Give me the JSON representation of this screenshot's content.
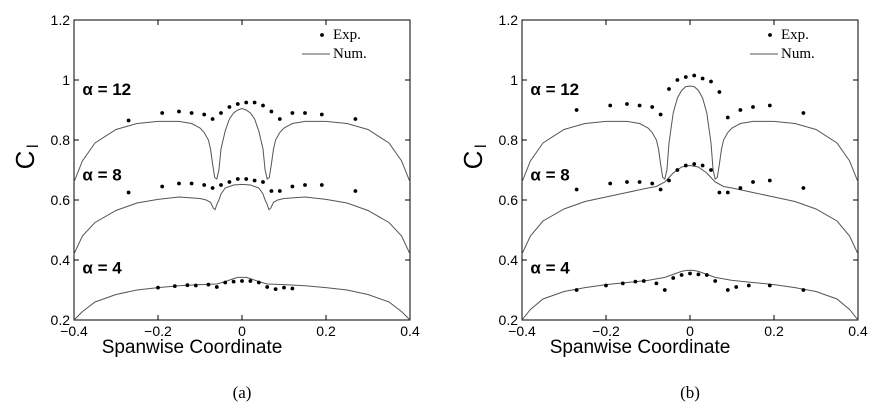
{
  "chart_data": [
    {
      "type": "scatter",
      "caption": "(a)",
      "xlabel": "Spanwise Coordinate",
      "ylabel": "C",
      "ylabel_sub": "l",
      "xlim": [
        -0.4,
        0.4
      ],
      "ylim": [
        0.2,
        1.2
      ],
      "xticks": [
        -0.4,
        -0.2,
        0,
        0.2,
        0.4
      ],
      "yticks": [
        0.2,
        0.4,
        0.6,
        0.8,
        1,
        1.2
      ],
      "xtick_labels": [
        "−0.4",
        "−0.2",
        "0",
        "0.2",
        "0.4"
      ],
      "ytick_labels": [
        "0.2",
        "0.4",
        "0.6",
        "0.8",
        "1",
        "1.2"
      ],
      "legend": {
        "position": "top-right",
        "entries": [
          {
            "label": "Exp.",
            "marker": "dot"
          },
          {
            "label": "Num.",
            "marker": "line"
          }
        ]
      },
      "series": [
        {
          "name": "α = 12",
          "label_at": [
            -0.38,
            0.95
          ],
          "exp": {
            "x": [
              -0.27,
              -0.19,
              -0.15,
              -0.12,
              -0.09,
              -0.07,
              -0.05,
              -0.03,
              -0.01,
              0.01,
              0.03,
              0.05,
              0.07,
              0.09,
              0.12,
              0.15,
              0.19,
              0.27
            ],
            "y": [
              0.865,
              0.89,
              0.895,
              0.89,
              0.885,
              0.87,
              0.89,
              0.91,
              0.92,
              0.925,
              0.925,
              0.915,
              0.895,
              0.87,
              0.89,
              0.89,
              0.885,
              0.87
            ]
          },
          "num": {
            "x": [
              -0.4,
              -0.38,
              -0.35,
              -0.3,
              -0.25,
              -0.2,
              -0.15,
              -0.12,
              -0.1,
              -0.09,
              -0.08,
              -0.075,
              -0.07,
              -0.065,
              -0.06,
              -0.055,
              -0.05,
              -0.04,
              -0.03,
              -0.02,
              -0.01,
              0,
              0.01,
              0.02,
              0.03,
              0.04,
              0.05,
              0.055,
              0.06,
              0.065,
              0.07,
              0.075,
              0.08,
              0.09,
              0.1,
              0.12,
              0.15,
              0.2,
              0.25,
              0.3,
              0.35,
              0.38,
              0.4
            ],
            "y": [
              0.66,
              0.73,
              0.79,
              0.835,
              0.855,
              0.862,
              0.862,
              0.855,
              0.84,
              0.825,
              0.8,
              0.77,
              0.72,
              0.675,
              0.67,
              0.7,
              0.77,
              0.83,
              0.87,
              0.89,
              0.9,
              0.905,
              0.9,
              0.89,
              0.87,
              0.83,
              0.77,
              0.7,
              0.67,
              0.675,
              0.72,
              0.77,
              0.8,
              0.825,
              0.84,
              0.855,
              0.862,
              0.862,
              0.855,
              0.835,
              0.79,
              0.73,
              0.66
            ]
          }
        },
        {
          "name": "α = 8",
          "label_at": [
            -0.38,
            0.665
          ],
          "exp": {
            "x": [
              -0.27,
              -0.19,
              -0.15,
              -0.12,
              -0.09,
              -0.07,
              -0.05,
              -0.03,
              -0.01,
              0.01,
              0.03,
              0.05,
              0.07,
              0.09,
              0.12,
              0.15,
              0.19,
              0.27
            ],
            "y": [
              0.625,
              0.645,
              0.655,
              0.655,
              0.65,
              0.64,
              0.65,
              0.66,
              0.67,
              0.67,
              0.665,
              0.66,
              0.63,
              0.63,
              0.645,
              0.65,
              0.65,
              0.63
            ]
          },
          "num": {
            "x": [
              -0.4,
              -0.38,
              -0.35,
              -0.3,
              -0.25,
              -0.2,
              -0.15,
              -0.1,
              -0.085,
              -0.075,
              -0.068,
              -0.064,
              -0.06,
              -0.055,
              -0.05,
              -0.04,
              -0.02,
              0,
              0.02,
              0.04,
              0.05,
              0.055,
              0.06,
              0.064,
              0.068,
              0.075,
              0.085,
              0.1,
              0.15,
              0.2,
              0.25,
              0.3,
              0.35,
              0.38,
              0.4
            ],
            "y": [
              0.42,
              0.48,
              0.525,
              0.565,
              0.59,
              0.602,
              0.61,
              0.605,
              0.6,
              0.592,
              0.572,
              0.568,
              0.585,
              0.6,
              0.62,
              0.64,
              0.65,
              0.652,
              0.65,
              0.64,
              0.62,
              0.6,
              0.585,
              0.568,
              0.572,
              0.592,
              0.6,
              0.605,
              0.61,
              0.602,
              0.59,
              0.565,
              0.525,
              0.48,
              0.42
            ]
          }
        },
        {
          "name": "α = 4",
          "label_at": [
            -0.38,
            0.355
          ],
          "exp": {
            "x": [
              -0.2,
              -0.16,
              -0.13,
              -0.11,
              -0.08,
              -0.06,
              -0.04,
              -0.02,
              0,
              0.02,
              0.04,
              0.06,
              0.08,
              0.1,
              0.12
            ],
            "y": [
              0.308,
              0.313,
              0.316,
              0.315,
              0.318,
              0.31,
              0.325,
              0.328,
              0.33,
              0.33,
              0.325,
              0.31,
              0.303,
              0.308,
              0.305
            ]
          },
          "num": {
            "x": [
              -0.4,
              -0.38,
              -0.35,
              -0.3,
              -0.25,
              -0.2,
              -0.15,
              -0.1,
              -0.06,
              -0.04,
              -0.02,
              -0.01,
              0,
              0.01,
              0.02,
              0.04,
              0.06,
              0.1,
              0.15,
              0.2,
              0.25,
              0.3,
              0.35,
              0.38,
              0.4
            ],
            "y": [
              0.2,
              0.228,
              0.26,
              0.285,
              0.3,
              0.308,
              0.314,
              0.318,
              0.32,
              0.328,
              0.338,
              0.342,
              0.342,
              0.342,
              0.338,
              0.328,
              0.32,
              0.318,
              0.314,
              0.308,
              0.3,
              0.285,
              0.26,
              0.228,
              0.2
            ]
          }
        }
      ]
    },
    {
      "type": "scatter",
      "caption": "(b)",
      "xlabel": "Spanwise Coordinate",
      "ylabel": "C",
      "ylabel_sub": "l",
      "xlim": [
        -0.4,
        0.4
      ],
      "ylim": [
        0.2,
        1.2
      ],
      "xticks": [
        -0.4,
        -0.2,
        0,
        0.2,
        0.4
      ],
      "yticks": [
        0.2,
        0.4,
        0.6,
        0.8,
        1,
        1.2
      ],
      "xtick_labels": [
        "−0.4",
        "−0.2",
        "0",
        "0.2",
        "0.4"
      ],
      "ytick_labels": [
        "0.2",
        "0.4",
        "0.6",
        "0.8",
        "1",
        "1.2"
      ],
      "legend": {
        "position": "top-right",
        "entries": [
          {
            "label": "Exp.",
            "marker": "dot"
          },
          {
            "label": "Num.",
            "marker": "line"
          }
        ]
      },
      "series": [
        {
          "name": "α = 12",
          "label_at": [
            -0.38,
            0.95
          ],
          "exp": {
            "x": [
              -0.27,
              -0.19,
              -0.15,
              -0.12,
              -0.09,
              -0.07,
              -0.05,
              -0.03,
              -0.01,
              0.01,
              0.03,
              0.05,
              0.07,
              0.09,
              0.12,
              0.15,
              0.19,
              0.27
            ],
            "y": [
              0.9,
              0.915,
              0.92,
              0.915,
              0.91,
              0.885,
              0.97,
              1,
              1.01,
              1.015,
              1.005,
              0.995,
              0.96,
              0.875,
              0.9,
              0.91,
              0.915,
              0.89
            ]
          },
          "num": {
            "x": [
              -0.4,
              -0.38,
              -0.35,
              -0.3,
              -0.25,
              -0.2,
              -0.15,
              -0.12,
              -0.1,
              -0.09,
              -0.08,
              -0.075,
              -0.07,
              -0.065,
              -0.06,
              -0.055,
              -0.05,
              -0.04,
              -0.03,
              -0.02,
              -0.01,
              0,
              0.01,
              0.02,
              0.03,
              0.04,
              0.05,
              0.055,
              0.06,
              0.065,
              0.07,
              0.075,
              0.08,
              0.09,
              0.1,
              0.12,
              0.15,
              0.2,
              0.25,
              0.3,
              0.35,
              0.38,
              0.4
            ],
            "y": [
              0.66,
              0.73,
              0.79,
              0.835,
              0.855,
              0.862,
              0.862,
              0.855,
              0.84,
              0.825,
              0.8,
              0.77,
              0.72,
              0.675,
              0.67,
              0.7,
              0.79,
              0.89,
              0.94,
              0.965,
              0.978,
              0.98,
              0.978,
              0.965,
              0.94,
              0.89,
              0.79,
              0.7,
              0.67,
              0.675,
              0.72,
              0.77,
              0.8,
              0.825,
              0.84,
              0.855,
              0.862,
              0.862,
              0.855,
              0.835,
              0.79,
              0.73,
              0.66
            ]
          }
        },
        {
          "name": "α = 8",
          "label_at": [
            -0.38,
            0.665
          ],
          "exp": {
            "x": [
              -0.27,
              -0.19,
              -0.15,
              -0.12,
              -0.09,
              -0.07,
              -0.05,
              -0.03,
              -0.01,
              0.01,
              0.03,
              0.05,
              0.07,
              0.09,
              0.12,
              0.15,
              0.19,
              0.27
            ],
            "y": [
              0.635,
              0.655,
              0.66,
              0.66,
              0.655,
              0.635,
              0.665,
              0.7,
              0.715,
              0.72,
              0.715,
              0.7,
              0.625,
              0.625,
              0.64,
              0.66,
              0.665,
              0.64
            ]
          },
          "num": {
            "x": [
              -0.4,
              -0.38,
              -0.35,
              -0.3,
              -0.25,
              -0.2,
              -0.15,
              -0.1,
              -0.08,
              -0.06,
              -0.04,
              -0.02,
              0,
              0.02,
              0.04,
              0.06,
              0.08,
              0.1,
              0.15,
              0.2,
              0.25,
              0.3,
              0.35,
              0.38,
              0.4
            ],
            "y": [
              0.42,
              0.48,
              0.53,
              0.57,
              0.595,
              0.61,
              0.625,
              0.64,
              0.645,
              0.66,
              0.69,
              0.71,
              0.715,
              0.71,
              0.69,
              0.66,
              0.645,
              0.64,
              0.625,
              0.61,
              0.595,
              0.57,
              0.53,
              0.48,
              0.42
            ]
          }
        },
        {
          "name": "α = 4",
          "label_at": [
            -0.38,
            0.355
          ],
          "exp": {
            "x": [
              -0.27,
              -0.2,
              -0.16,
              -0.13,
              -0.11,
              -0.08,
              -0.06,
              -0.04,
              -0.02,
              0,
              0.02,
              0.04,
              0.06,
              0.09,
              0.11,
              0.14,
              0.19,
              0.27
            ],
            "y": [
              0.3,
              0.315,
              0.322,
              0.328,
              0.33,
              0.322,
              0.3,
              0.34,
              0.35,
              0.355,
              0.352,
              0.35,
              0.33,
              0.3,
              0.31,
              0.315,
              0.315,
              0.3
            ]
          },
          "num": {
            "x": [
              -0.4,
              -0.38,
              -0.35,
              -0.3,
              -0.25,
              -0.2,
              -0.15,
              -0.1,
              -0.06,
              -0.04,
              -0.02,
              -0.01,
              0,
              0.01,
              0.02,
              0.04,
              0.06,
              0.1,
              0.15,
              0.2,
              0.25,
              0.3,
              0.35,
              0.38,
              0.4
            ],
            "y": [
              0.2,
              0.235,
              0.27,
              0.295,
              0.308,
              0.318,
              0.325,
              0.332,
              0.342,
              0.352,
              0.362,
              0.365,
              0.366,
              0.365,
              0.362,
              0.352,
              0.342,
              0.332,
              0.325,
              0.318,
              0.308,
              0.295,
              0.27,
              0.235,
              0.2
            ]
          }
        }
      ]
    }
  ]
}
